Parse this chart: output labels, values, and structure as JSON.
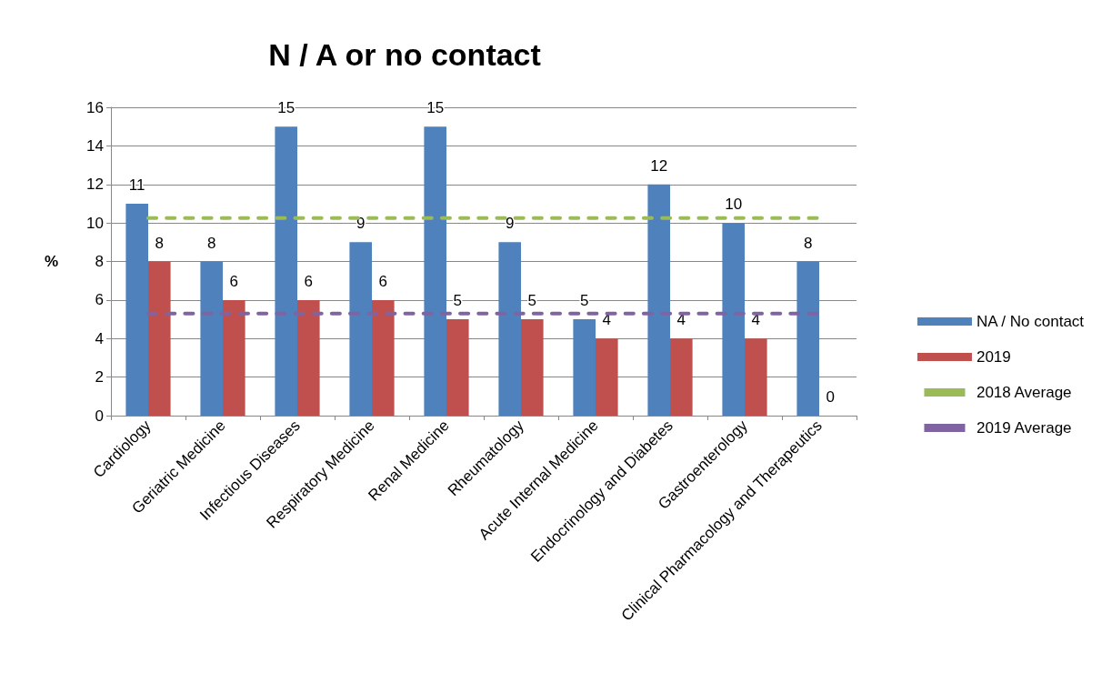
{
  "chart_data": {
    "type": "bar",
    "title": "N / A or no contact",
    "ylabel": "%",
    "categories": [
      "Cardiology",
      "Geriatric Medicine",
      "Infectious Diseases",
      "Respiratory Medicine",
      "Renal Medicine",
      "Rheumatology",
      "Acute Internal Medicine",
      "Endocrinology and Diabetes",
      "Gastroenterology",
      "Clinical Pharmacology and Therapeutics"
    ],
    "series": [
      {
        "name": "NA / No contact",
        "color": "#4f81bd",
        "values": [
          11,
          8,
          15,
          9,
          15,
          9,
          5,
          12,
          10,
          8
        ],
        "value_labels": [
          "11",
          "8",
          "15",
          "9",
          "15",
          "9",
          "5",
          "12",
          "10",
          "8"
        ]
      },
      {
        "name": "2019",
        "color": "#c0504d",
        "values": [
          8,
          6,
          6,
          6,
          5,
          5,
          4,
          4,
          4,
          0
        ],
        "value_labels": [
          "8",
          "6",
          "6",
          "6",
          "5",
          "5",
          "4",
          "4",
          "4",
          "0"
        ]
      },
      {
        "name": "2018 Average",
        "type": "line",
        "color": "#9bbb59",
        "line_style": "dashed",
        "values": [
          10.25,
          10.25,
          10.25,
          10.25,
          10.25,
          10.25,
          10.25,
          10.25,
          10.25,
          10.25
        ]
      },
      {
        "name": "2019 Average",
        "type": "line",
        "color": "#8064a2",
        "line_style": "dashed",
        "values": [
          5.3,
          5.3,
          5.3,
          5.3,
          5.3,
          5.3,
          5.3,
          5.3,
          5.3,
          5.3
        ]
      }
    ],
    "ylim": [
      0,
      16
    ],
    "yticks": [
      0,
      2,
      4,
      6,
      8,
      10,
      12,
      14,
      16
    ],
    "grid": "y",
    "legend": "right",
    "marker": "none"
  }
}
